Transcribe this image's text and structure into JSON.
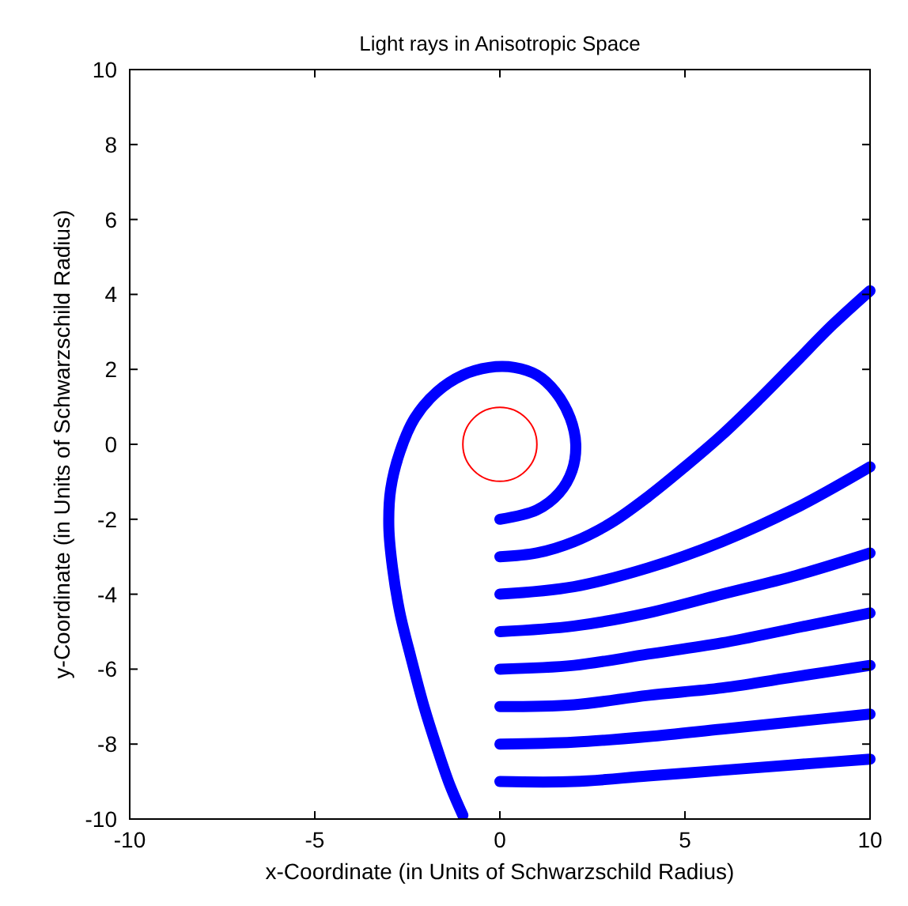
{
  "chart_data": {
    "type": "line",
    "title": "Light rays in Anisotropic Space",
    "xlabel": "x-Coordinate (in Units of Schwarzschild Radius)",
    "ylabel": "y-Coordinate (in Units of Schwarzschild Radius)",
    "xlim": [
      -10,
      10
    ],
    "ylim": [
      -10,
      10
    ],
    "xticks": [
      -10,
      -5,
      0,
      5,
      10
    ],
    "yticks": [
      -10,
      -8,
      -6,
      -4,
      -2,
      0,
      2,
      4,
      6,
      8,
      10
    ],
    "grid": false,
    "series": [
      {
        "color": "#0000ff",
        "x": [
          0,
          1,
          1.6,
          1.95,
          2.05,
          1.9,
          1.5,
          1,
          0.4,
          -0.3,
          -1,
          -1.7,
          -2.3,
          -2.7,
          -2.95,
          -3,
          -2.9,
          -2.7,
          -2.4,
          -2.05,
          -1.7,
          -1.35,
          -1.0
        ],
        "values": [
          -2,
          -1.75,
          -1.3,
          -0.7,
          0,
          0.7,
          1.4,
          1.85,
          2.05,
          2.05,
          1.85,
          1.4,
          0.7,
          -0.2,
          -1.2,
          -2.2,
          -3.3,
          -4.5,
          -5.7,
          -7,
          -8.1,
          -9.1,
          -9.9
        ]
      },
      {
        "color": "#0000ff",
        "x": [
          0,
          1,
          2,
          3,
          4,
          5,
          6,
          7,
          8,
          9,
          10
        ],
        "values": [
          -3,
          -2.9,
          -2.6,
          -2.1,
          -1.4,
          -0.6,
          0.25,
          1.2,
          2.2,
          3.2,
          4.1
        ]
      },
      {
        "color": "#0000ff",
        "x": [
          0,
          2,
          4,
          6,
          8,
          10
        ],
        "values": [
          -4,
          -3.8,
          -3.3,
          -2.6,
          -1.7,
          -0.6
        ]
      },
      {
        "color": "#0000ff",
        "x": [
          0,
          2,
          4,
          6,
          8,
          10
        ],
        "values": [
          -5,
          -4.85,
          -4.5,
          -4,
          -3.5,
          -2.9
        ]
      },
      {
        "color": "#0000ff",
        "x": [
          0,
          2,
          4,
          6,
          8,
          10
        ],
        "values": [
          -6,
          -5.9,
          -5.6,
          -5.3,
          -4.9,
          -4.5
        ]
      },
      {
        "color": "#0000ff",
        "x": [
          0,
          2,
          4,
          6,
          8,
          10
        ],
        "values": [
          -7,
          -6.95,
          -6.7,
          -6.5,
          -6.2,
          -5.9
        ]
      },
      {
        "color": "#0000ff",
        "x": [
          0,
          2,
          4,
          6,
          8,
          10
        ],
        "values": [
          -8,
          -7.95,
          -7.8,
          -7.6,
          -7.4,
          -7.2
        ]
      },
      {
        "color": "#0000ff",
        "x": [
          0,
          2,
          4,
          6,
          8,
          10
        ],
        "values": [
          -9,
          -9,
          -8.85,
          -8.7,
          -8.55,
          -8.4
        ]
      }
    ]
  }
}
